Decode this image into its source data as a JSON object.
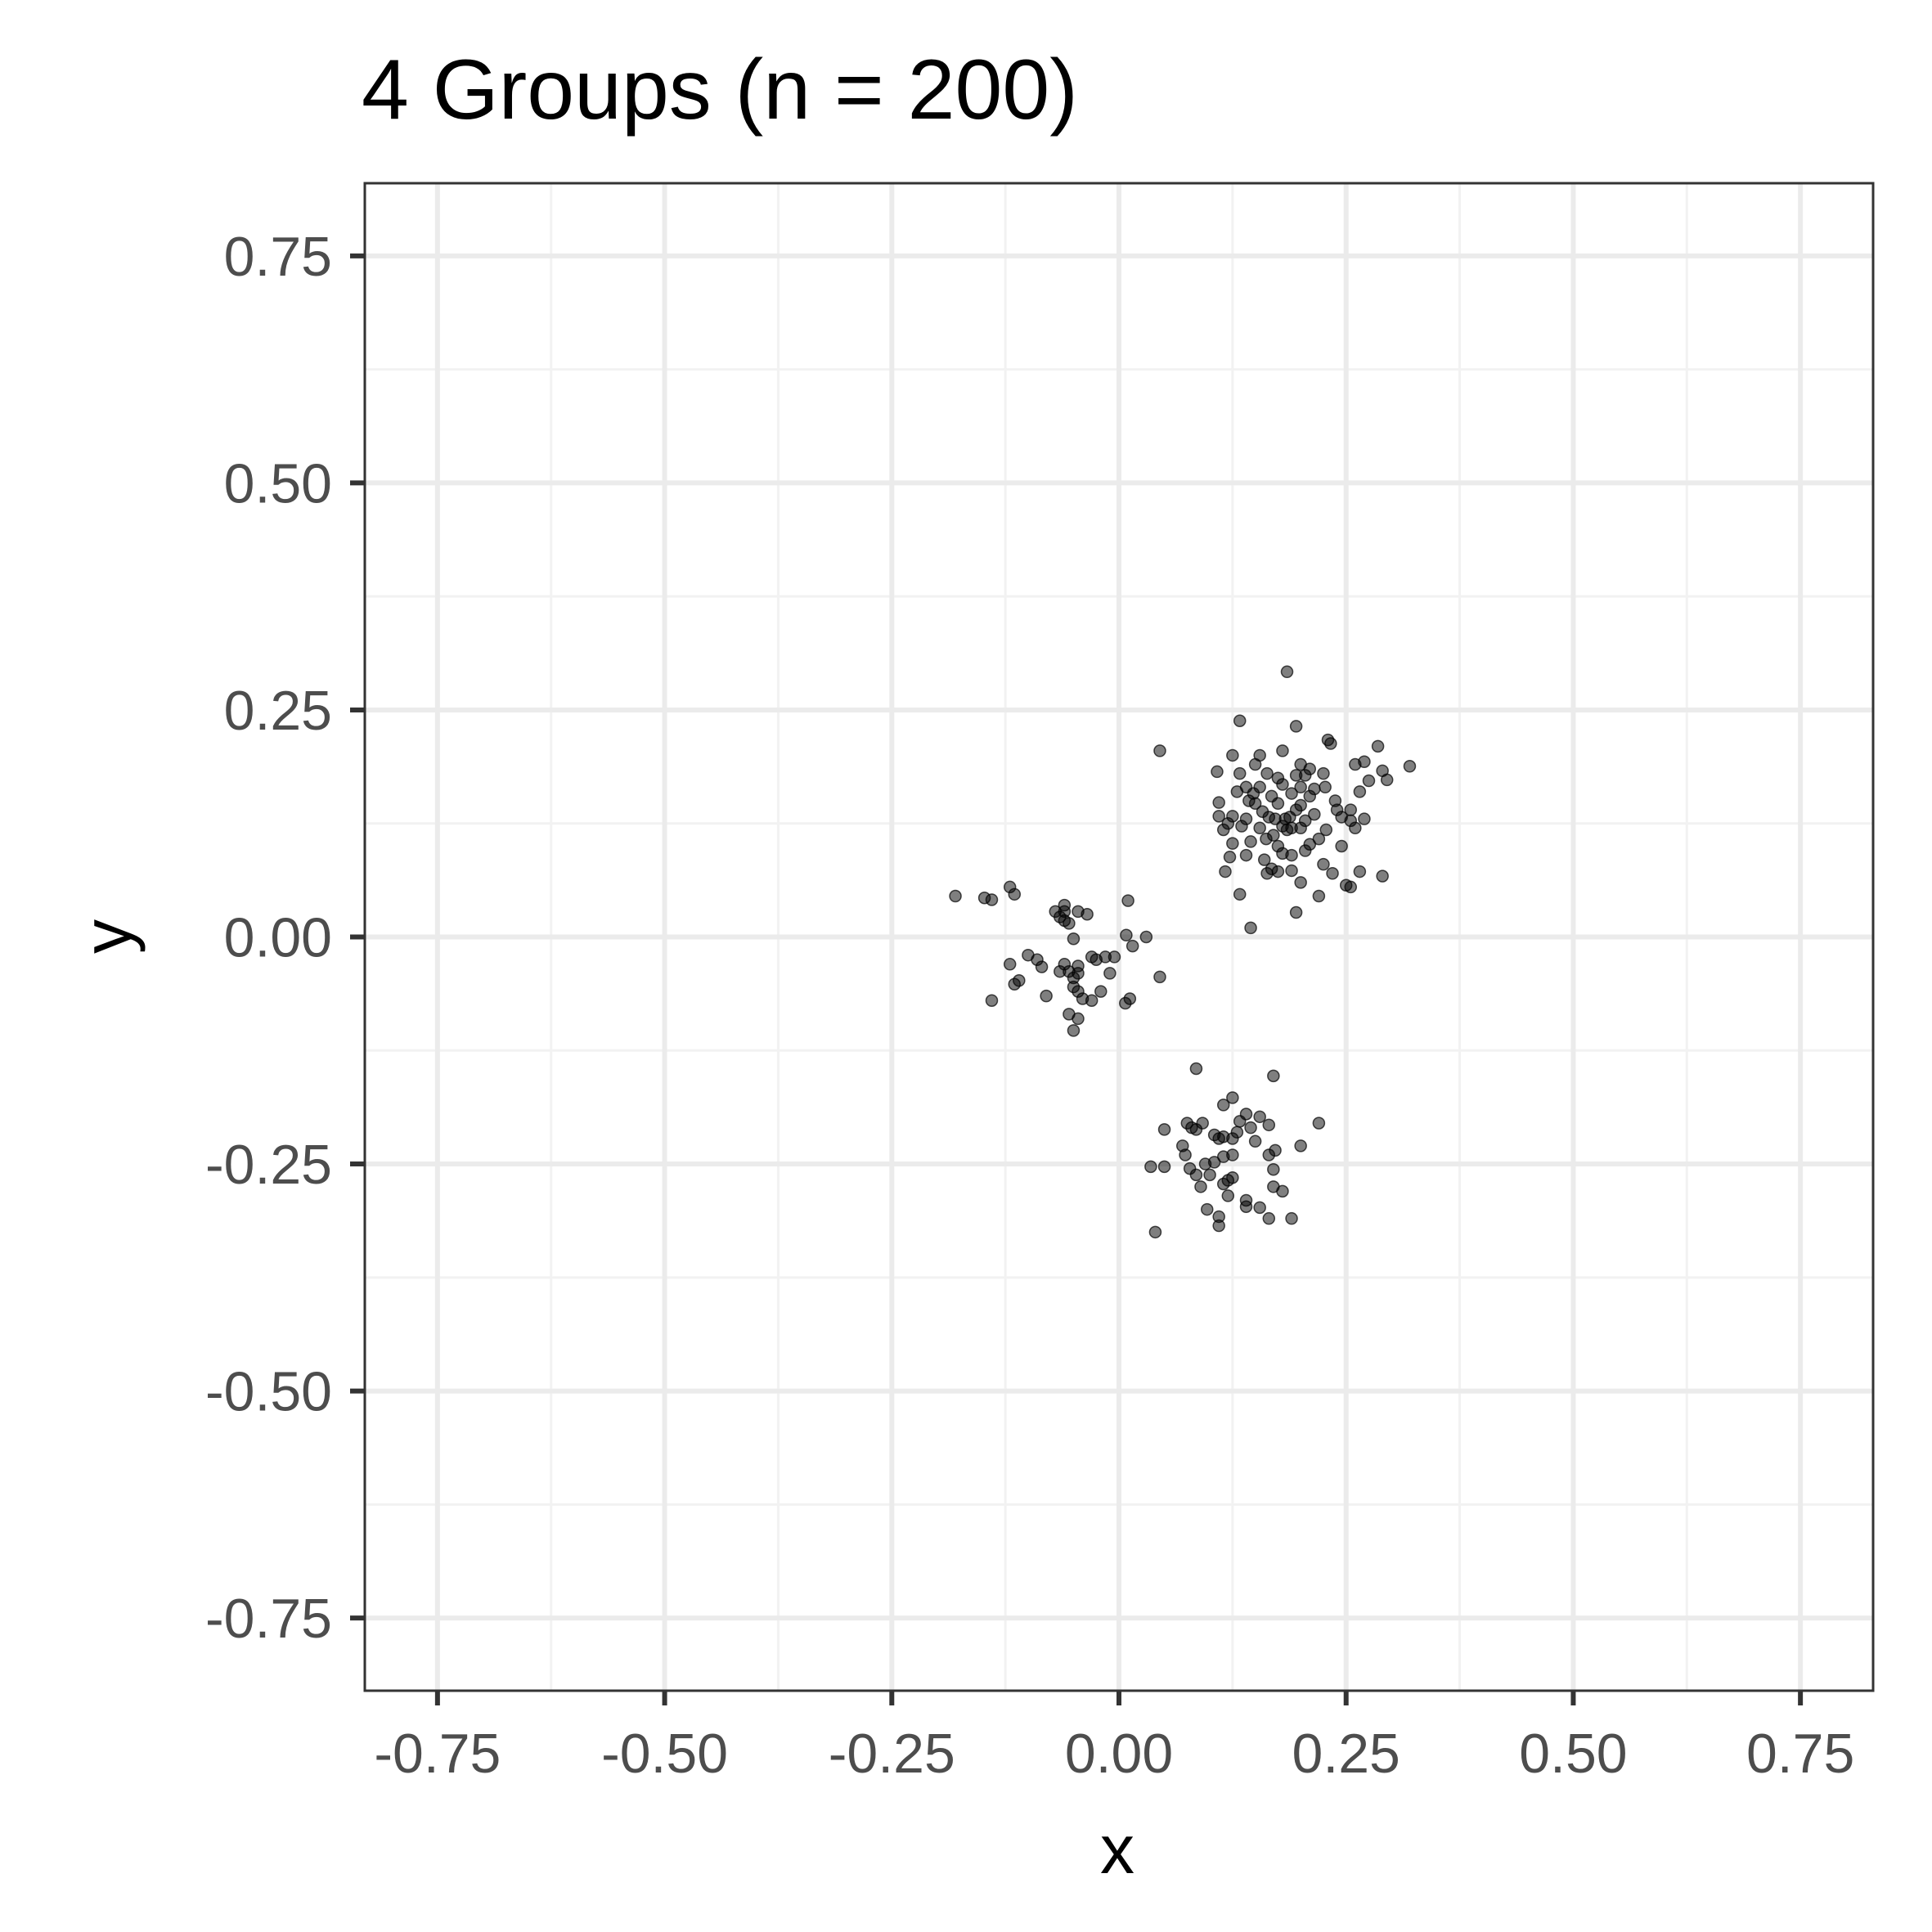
{
  "chart_data": {
    "type": "scatter",
    "title": "4 Groups (n = 200)",
    "xlabel": "x",
    "ylabel": "y",
    "xlim": [
      -0.83,
      0.83
    ],
    "ylim": [
      -0.83,
      0.83
    ],
    "x_ticks": [
      -0.75,
      -0.5,
      -0.25,
      0,
      0.25,
      0.5,
      0.75
    ],
    "x_tick_labels": [
      "-0.75",
      "-0.50",
      "-0.25",
      "0.00",
      "0.25",
      "0.50",
      "0.75"
    ],
    "y_ticks": [
      -0.75,
      -0.5,
      -0.25,
      0,
      0.25,
      0.5,
      0.75
    ],
    "y_tick_labels": [
      "-0.75",
      "-0.50",
      "-0.25",
      "0.00",
      "0.25",
      "0.50",
      "0.75"
    ],
    "grid": true,
    "legend": "none",
    "colors": {
      "point": "#000000",
      "point_opacity": 0.5,
      "grid_major": "#ebebeb",
      "grid_minor": "#f2f2f2",
      "panel_border": "#333333",
      "tick_label": "#4d4d4d"
    },
    "series": [
      {
        "points": [
          [
            0.185,
            0.292
          ],
          [
            0.133,
            0.238
          ],
          [
            0.195,
            0.232
          ],
          [
            0.045,
            0.205
          ],
          [
            0.23,
            0.217
          ],
          [
            0.233,
            0.213
          ],
          [
            0.18,
            0.205
          ],
          [
            0.125,
            0.2
          ],
          [
            0.285,
            0.21
          ],
          [
            0.27,
            0.193
          ],
          [
            0.32,
            0.188
          ],
          [
            0.15,
            0.19
          ],
          [
            0.2,
            0.19
          ],
          [
            0.26,
            0.19
          ],
          [
            0.108,
            0.182
          ],
          [
            0.163,
            0.18
          ],
          [
            0.21,
            0.185
          ],
          [
            0.225,
            0.18
          ],
          [
            0.29,
            0.183
          ],
          [
            0.175,
            0.175
          ],
          [
            0.195,
            0.178
          ],
          [
            0.275,
            0.172
          ],
          [
            0.295,
            0.173
          ],
          [
            0.14,
            0.165
          ],
          [
            0.155,
            0.165
          ],
          [
            0.18,
            0.168
          ],
          [
            0.2,
            0.165
          ],
          [
            0.215,
            0.163
          ],
          [
            0.13,
            0.16
          ],
          [
            0.148,
            0.158
          ],
          [
            0.19,
            0.158
          ],
          [
            0.168,
            0.155
          ],
          [
            0.11,
            0.148
          ],
          [
            0.143,
            0.15
          ],
          [
            0.15,
            0.147
          ],
          [
            0.175,
            0.147
          ],
          [
            0.195,
            0.14
          ],
          [
            0.24,
            0.14
          ],
          [
            0.255,
            0.14
          ],
          [
            0.11,
            0.133
          ],
          [
            0.125,
            0.133
          ],
          [
            0.172,
            0.13
          ],
          [
            0.205,
            0.128
          ],
          [
            0.245,
            0.132
          ],
          [
            0.255,
            0.128
          ],
          [
            0.12,
            0.125
          ],
          [
            0.135,
            0.122
          ],
          [
            0.18,
            0.122
          ],
          [
            0.185,
            0.118
          ],
          [
            0.228,
            0.118
          ],
          [
            0.26,
            0.12
          ],
          [
            0.115,
            0.118
          ],
          [
            0.155,
            0.12
          ],
          [
            0.19,
            0.12
          ],
          [
            0.2,
            0.12
          ],
          [
            0.162,
            0.108
          ],
          [
            0.22,
            0.108
          ],
          [
            0.125,
            0.103
          ],
          [
            0.175,
            0.1
          ],
          [
            0.21,
            0.102
          ],
          [
            0.18,
            0.092
          ],
          [
            0.19,
            0.09
          ],
          [
            0.122,
            0.088
          ],
          [
            0.225,
            0.08
          ],
          [
            0.168,
            0.075
          ],
          [
            0.175,
            0.072
          ],
          [
            0.19,
            0.073
          ],
          [
            0.117,
            0.072
          ],
          [
            0.163,
            0.07
          ],
          [
            0.235,
            0.07
          ],
          [
            0.265,
            0.072
          ],
          [
            0.29,
            0.067
          ],
          [
            0.25,
            0.057
          ],
          [
            0.255,
            0.055
          ],
          [
            0.133,
            0.047
          ],
          [
            0.22,
            0.045
          ],
          [
            0.195,
            0.027
          ],
          [
            0.145,
            0.01
          ]
        ]
      },
      {
        "points": [
          [
            -0.18,
            0.045
          ],
          [
            -0.148,
            0.043
          ],
          [
            -0.14,
            0.041
          ],
          [
            -0.12,
            0.055
          ],
          [
            -0.115,
            0.047
          ],
          [
            0.01,
            0.04
          ],
          [
            -0.06,
            0.035
          ],
          [
            -0.07,
            0.028
          ],
          [
            -0.06,
            0.028
          ],
          [
            -0.045,
            0.028
          ],
          [
            -0.035,
            0.025
          ],
          [
            -0.065,
            0.022
          ],
          [
            -0.06,
            0.018
          ],
          [
            -0.055,
            0.015
          ],
          [
            0.008,
            0.002
          ],
          [
            0.03,
            0.0
          ],
          [
            -0.05,
            -0.002
          ],
          [
            0.015,
            -0.01
          ],
          [
            -0.1,
            -0.02
          ],
          [
            -0.03,
            -0.022
          ],
          [
            -0.015,
            -0.022
          ],
          [
            -0.005,
            -0.022
          ],
          [
            -0.025,
            -0.025
          ],
          [
            -0.09,
            -0.025
          ],
          [
            -0.06,
            -0.03
          ],
          [
            -0.12,
            -0.03
          ],
          [
            -0.045,
            -0.032
          ],
          [
            -0.085,
            -0.033
          ],
          [
            -0.055,
            -0.038
          ],
          [
            -0.065,
            -0.038
          ],
          [
            -0.045,
            -0.04
          ],
          [
            -0.01,
            -0.04
          ],
          [
            -0.05,
            -0.045
          ],
          [
            0.045,
            -0.044
          ],
          [
            -0.11,
            -0.048
          ],
          [
            -0.115,
            -0.052
          ],
          [
            -0.05,
            -0.055
          ],
          [
            -0.045,
            -0.06
          ],
          [
            -0.02,
            -0.06
          ],
          [
            -0.08,
            -0.065
          ],
          [
            -0.04,
            -0.068
          ],
          [
            -0.03,
            -0.07
          ],
          [
            -0.14,
            -0.07
          ],
          [
            0.012,
            -0.068
          ],
          [
            0.007,
            -0.073
          ],
          [
            -0.055,
            -0.085
          ],
          [
            -0.045,
            -0.09
          ],
          [
            -0.05,
            -0.103
          ]
        ]
      },
      {
        "points": [
          [
            0.085,
            -0.145
          ],
          [
            0.17,
            -0.153
          ],
          [
            0.125,
            -0.177
          ],
          [
            0.115,
            -0.185
          ],
          [
            0.14,
            -0.195
          ],
          [
            0.155,
            -0.198
          ],
          [
            0.133,
            -0.203
          ],
          [
            0.165,
            -0.207
          ],
          [
            0.22,
            -0.205
          ],
          [
            0.075,
            -0.205
          ],
          [
            0.092,
            -0.205
          ],
          [
            0.08,
            -0.21
          ],
          [
            0.085,
            -0.212
          ],
          [
            0.05,
            -0.212
          ],
          [
            0.13,
            -0.215
          ],
          [
            0.145,
            -0.21
          ],
          [
            0.105,
            -0.218
          ],
          [
            0.115,
            -0.22
          ],
          [
            0.125,
            -0.222
          ],
          [
            0.11,
            -0.222
          ],
          [
            0.15,
            -0.225
          ],
          [
            0.2,
            -0.23
          ],
          [
            0.07,
            -0.23
          ],
          [
            0.172,
            -0.235
          ],
          [
            0.165,
            -0.24
          ],
          [
            0.125,
            -0.24
          ],
          [
            0.073,
            -0.24
          ],
          [
            0.115,
            -0.242
          ],
          [
            0.105,
            -0.248
          ],
          [
            0.095,
            -0.25
          ],
          [
            0.035,
            -0.253
          ],
          [
            0.05,
            -0.253
          ],
          [
            0.078,
            -0.255
          ],
          [
            0.17,
            -0.256
          ],
          [
            0.085,
            -0.262
          ],
          [
            0.1,
            -0.262
          ],
          [
            0.125,
            -0.265
          ],
          [
            0.12,
            -0.268
          ],
          [
            0.115,
            -0.272
          ],
          [
            0.09,
            -0.275
          ],
          [
            0.17,
            -0.275
          ],
          [
            0.18,
            -0.28
          ],
          [
            0.12,
            -0.285
          ],
          [
            0.14,
            -0.29
          ],
          [
            0.14,
            -0.297
          ],
          [
            0.155,
            -0.298
          ],
          [
            0.097,
            -0.3
          ],
          [
            0.11,
            -0.308
          ],
          [
            0.165,
            -0.31
          ],
          [
            0.19,
            -0.31
          ],
          [
            0.11,
            -0.318
          ],
          [
            0.04,
            -0.325
          ]
        ]
      },
      {
        "points": [
          [
            0.205,
            0.178
          ],
          [
            0.215,
            0.135
          ],
          [
            0.14,
            0.13
          ],
          [
            0.2,
            0.145
          ],
          [
            0.158,
            0.138
          ],
          [
            0.183,
            0.13
          ],
          [
            0.17,
            0.112
          ],
          [
            0.145,
            0.105
          ],
          [
            0.205,
            0.095
          ],
          [
            0.133,
            0.18
          ],
          [
            0.265,
            0.16
          ],
          [
            0.238,
            0.15
          ],
          [
            0.16,
            0.085
          ],
          [
            0.2,
            0.06
          ],
          [
            0.245,
            0.1
          ],
          [
            0.155,
            0.2
          ],
          [
            0.21,
            0.155
          ],
          [
            0.188,
            0.132
          ],
          [
            0.165,
            0.132
          ],
          [
            0.227,
            0.165
          ],
          [
            0.14,
            0.09
          ],
          [
            0.27,
            0.13
          ]
        ]
      }
    ]
  }
}
